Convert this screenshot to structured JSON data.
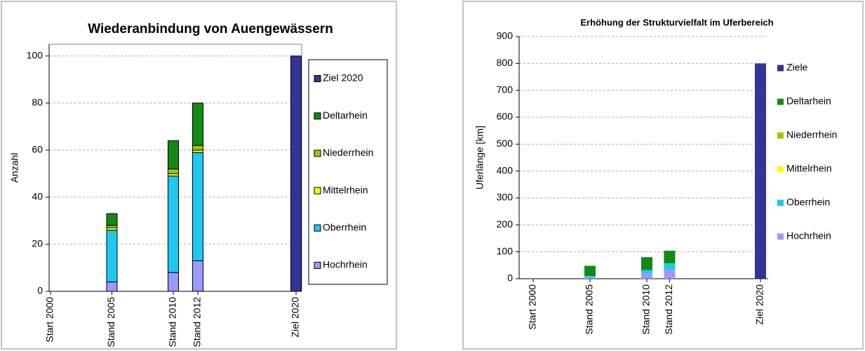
{
  "chart_data": [
    {
      "type": "bar",
      "stacked": true,
      "title": "Wiederanbindung von Auengewässern",
      "y_label": "Anzahl",
      "categories": [
        "Start 2000",
        "Stand 2005",
        "Stand 2010",
        "Stand 2012",
        "Ziel 2020"
      ],
      "x": [
        2000,
        2005,
        2010,
        2012,
        2020
      ],
      "ylim": [
        0,
        105
      ],
      "yticks": [
        0,
        20,
        40,
        60,
        80,
        100
      ],
      "grid": true,
      "legend": "right",
      "series": [
        {
          "name": "Hochrhein",
          "color": "#9999ff",
          "values": [
            0,
            4,
            8,
            13,
            0
          ]
        },
        {
          "name": "Oberrhein",
          "color": "#1ec8f0",
          "values": [
            0,
            22,
            41,
            46,
            0
          ]
        },
        {
          "name": "Mittelrhein",
          "color": "#ffff00",
          "values": [
            0,
            1,
            1,
            1,
            0
          ]
        },
        {
          "name": "Niederrhein",
          "color": "#99cc00",
          "values": [
            0,
            1,
            2,
            2,
            0
          ]
        },
        {
          "name": "Deltarhein",
          "color": "#138a13",
          "values": [
            0,
            5,
            12,
            18,
            0
          ]
        },
        {
          "name": "Ziel 2020",
          "color": "#333399",
          "values": [
            0,
            0,
            0,
            0,
            100
          ]
        }
      ]
    },
    {
      "type": "bar",
      "stacked": true,
      "title": "Erhöhung der Strukturvielfalt im Uferbereich",
      "y_label": "Uferlänge [km]",
      "categories": [
        "Start 2000",
        "Stand 2005",
        "Stand 2010",
        "Stand 2012",
        "Ziel 2020"
      ],
      "x": [
        2000,
        2005,
        2010,
        2012,
        2020
      ],
      "ylim": [
        0,
        900
      ],
      "yticks": [
        0,
        100,
        200,
        300,
        400,
        500,
        600,
        700,
        800,
        900
      ],
      "grid": true,
      "legend": "right",
      "series": [
        {
          "name": "Hochrhein",
          "color": "#9999ff",
          "values": [
            0,
            5,
            20,
            32,
            0
          ]
        },
        {
          "name": "Oberrhein",
          "color": "#1ec8f0",
          "values": [
            0,
            5,
            12,
            25,
            0
          ]
        },
        {
          "name": "Mittelrhein",
          "color": "#ffff00",
          "values": [
            0,
            0,
            0,
            0,
            0
          ]
        },
        {
          "name": "Niederrhein",
          "color": "#99cc00",
          "values": [
            0,
            0,
            0,
            0,
            0
          ]
        },
        {
          "name": "Deltarhein",
          "color": "#138a13",
          "values": [
            0,
            38,
            48,
            47,
            0
          ]
        },
        {
          "name": "Ziele",
          "color": "#333399",
          "values": [
            0,
            0,
            0,
            0,
            800
          ]
        }
      ]
    }
  ]
}
